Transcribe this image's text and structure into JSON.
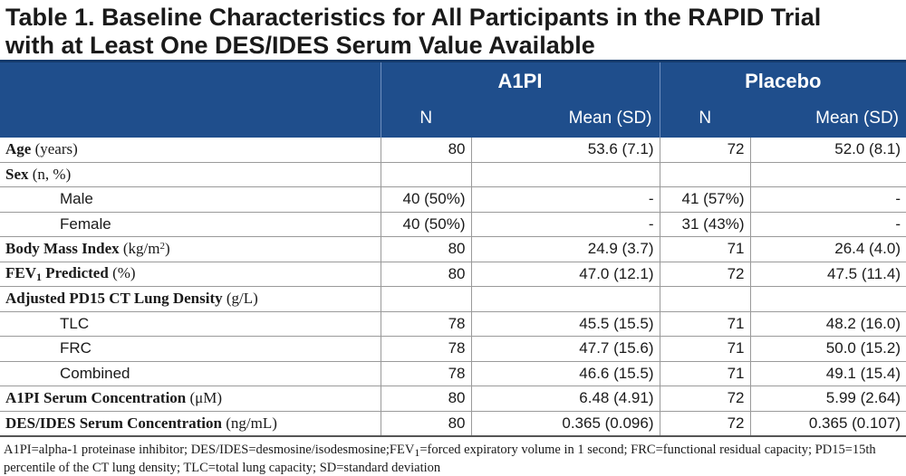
{
  "title": {
    "line1": "Table 1. Baseline Characteristics for All Participants in the RAPID Trial",
    "line2": "with at Least One DES/IDES Serum Value Available"
  },
  "header": {
    "group_a1pi": "A1PI",
    "group_placebo": "Placebo",
    "col_n": "N",
    "col_mean": "Mean (SD)"
  },
  "rows": [
    {
      "label": "Age",
      "unit": " (years)",
      "a_n": "80",
      "a_mean": "53.6 (7.1)",
      "p_n": "72",
      "p_mean": "52.0 (8.1)"
    },
    {
      "label": "Sex",
      "unit": " (n, %)",
      "a_n": "",
      "a_mean": "",
      "p_n": "",
      "p_mean": ""
    },
    {
      "label": "Male",
      "a_n": "40 (50%)",
      "a_mean": "-",
      "p_n": "41 (57%)",
      "p_mean": "-"
    },
    {
      "label": "Female",
      "a_n": "40 (50%)",
      "a_mean": "-",
      "p_n": "31 (43%)",
      "p_mean": "-"
    },
    {
      "label": "Body Mass Index",
      "unit": " (kg/m",
      "unit_sup": "2",
      "unit_end": ")",
      "a_n": "80",
      "a_mean": "24.9 (3.7)",
      "p_n": "71",
      "p_mean": "26.4 (4.0)"
    },
    {
      "label": "FEV",
      "label_sub": "1",
      "label_end": " Predicted",
      "unit": " (%)",
      "a_n": "80",
      "a_mean": "47.0 (12.1)",
      "p_n": "72",
      "p_mean": "47.5 (11.4)"
    },
    {
      "label": "Adjusted PD15 CT Lung Density",
      "unit": " (g/L)",
      "a_n": "",
      "a_mean": "",
      "p_n": "",
      "p_mean": ""
    },
    {
      "label": "TLC",
      "a_n": "78",
      "a_mean": "45.5 (15.5)",
      "p_n": "71",
      "p_mean": "48.2 (16.0)"
    },
    {
      "label": "FRC",
      "a_n": "78",
      "a_mean": "47.7 (15.6)",
      "p_n": "71",
      "p_mean": "50.0 (15.2)"
    },
    {
      "label": "Combined",
      "a_n": "78",
      "a_mean": "46.6 (15.5)",
      "p_n": "71",
      "p_mean": "49.1 (15.4)"
    },
    {
      "label": "A1PI Serum Concentration",
      "unit": " (μM)",
      "a_n": "80",
      "a_mean": "6.48 (4.91)",
      "p_n": "72",
      "p_mean": "5.99 (2.64)"
    },
    {
      "label": "DES/IDES Serum Concentration",
      "unit": " (ng/mL)",
      "a_n": "80",
      "a_mean": "0.365 (0.096)",
      "p_n": "72",
      "p_mean": "0.365 (0.107)"
    }
  ],
  "footnote": {
    "part1": "A1PI=alpha-1 proteinase inhibitor; DES/IDES=desmosine/isodesmosine;FEV",
    "part1_sub": "1",
    "part2": "=forced expiratory volume in 1 second; FRC=functional residual capacity; PD15=15th percentile of the CT lung density; TLC=total lung capacity; SD=standard deviation"
  }
}
